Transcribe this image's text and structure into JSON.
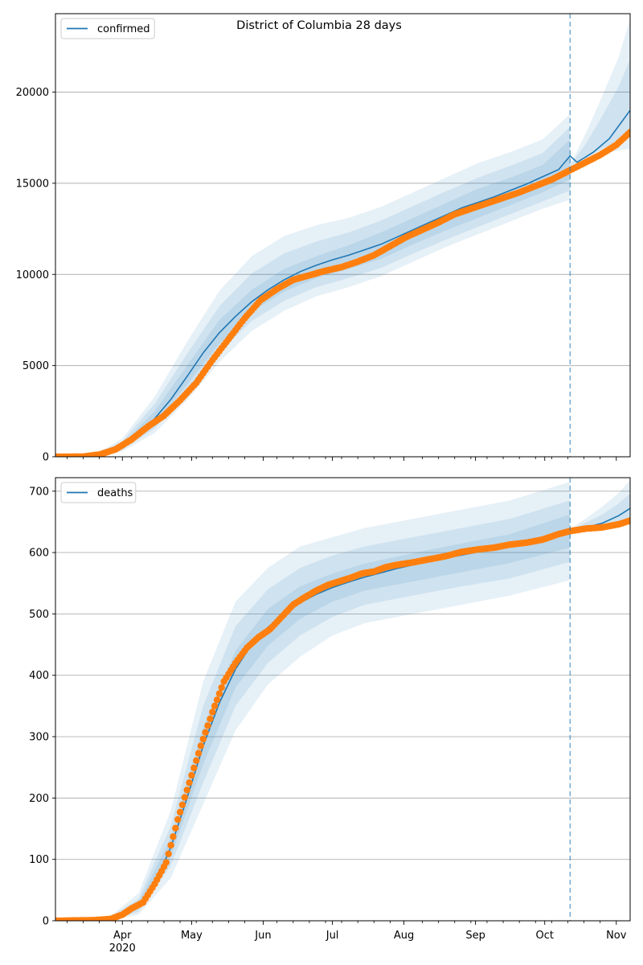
{
  "figure": {
    "title": "District of Columbia 28 days",
    "x_month_labels": [
      "Apr",
      "May",
      "Jun",
      "Jul",
      "Aug",
      "Sep",
      "Oct",
      "Nov"
    ],
    "x_year_label": "2020"
  },
  "chart_data": [
    {
      "type": "line",
      "legend": "confirmed",
      "legend_position": "top-left",
      "grid": "horizontal",
      "ylim": [
        0,
        24300
      ],
      "yticks": [
        0,
        5000,
        10000,
        15000,
        20000
      ],
      "xlim": [
        "2020-03-03",
        "2020-11-07"
      ],
      "forecast_start": "2020-10-12",
      "colors": {
        "model": "#1f77b4",
        "observed": "#ff7f0e",
        "band": "#1f77b4"
      },
      "model_median": [
        [
          "2020-03-03",
          0
        ],
        [
          "2020-03-20",
          40
        ],
        [
          "2020-03-27",
          230
        ],
        [
          "2020-04-01",
          550
        ],
        [
          "2020-04-08",
          1200
        ],
        [
          "2020-04-15",
          2100
        ],
        [
          "2020-04-22",
          3150
        ],
        [
          "2020-04-29",
          4400
        ],
        [
          "2020-05-06",
          5700
        ],
        [
          "2020-05-13",
          6800
        ],
        [
          "2020-05-20",
          7700
        ],
        [
          "2020-05-27",
          8500
        ],
        [
          "2020-06-03",
          9150
        ],
        [
          "2020-06-10",
          9700
        ],
        [
          "2020-06-17",
          10150
        ],
        [
          "2020-06-24",
          10500
        ],
        [
          "2020-07-01",
          10800
        ],
        [
          "2020-07-08",
          11050
        ],
        [
          "2020-07-15",
          11350
        ],
        [
          "2020-07-22",
          11650
        ],
        [
          "2020-07-29",
          12050
        ],
        [
          "2020-08-05",
          12450
        ],
        [
          "2020-08-12",
          12850
        ],
        [
          "2020-08-19",
          13250
        ],
        [
          "2020-08-26",
          13650
        ],
        [
          "2020-09-02",
          13950
        ],
        [
          "2020-09-09",
          14250
        ],
        [
          "2020-09-16",
          14600
        ],
        [
          "2020-09-23",
          14950
        ],
        [
          "2020-09-30",
          15350
        ],
        [
          "2020-10-07",
          15750
        ],
        [
          "2020-10-12",
          16500
        ],
        [
          "2020-10-15",
          16150
        ],
        [
          "2020-10-22",
          16700
        ],
        [
          "2020-10-29",
          17450
        ],
        [
          "2020-11-07",
          19000
        ]
      ],
      "observed": [
        [
          "2020-03-03",
          0
        ],
        [
          "2020-03-15",
          10
        ],
        [
          "2020-03-22",
          120
        ],
        [
          "2020-03-29",
          400
        ],
        [
          "2020-04-05",
          950
        ],
        [
          "2020-04-12",
          1650
        ],
        [
          "2020-04-19",
          2250
        ],
        [
          "2020-04-26",
          3100
        ],
        [
          "2020-05-03",
          4050
        ],
        [
          "2020-05-10",
          5300
        ],
        [
          "2020-05-17",
          6450
        ],
        [
          "2020-05-24",
          7600
        ],
        [
          "2020-05-31",
          8600
        ],
        [
          "2020-06-07",
          9200
        ],
        [
          "2020-06-14",
          9700
        ],
        [
          "2020-06-21",
          9950
        ],
        [
          "2020-06-28",
          10200
        ],
        [
          "2020-07-05",
          10400
        ],
        [
          "2020-07-12",
          10700
        ],
        [
          "2020-07-19",
          11050
        ],
        [
          "2020-07-26",
          11550
        ],
        [
          "2020-08-02",
          12050
        ],
        [
          "2020-08-09",
          12450
        ],
        [
          "2020-08-16",
          12850
        ],
        [
          "2020-08-23",
          13300
        ],
        [
          "2020-08-30",
          13600
        ],
        [
          "2020-09-06",
          13900
        ],
        [
          "2020-09-13",
          14200
        ],
        [
          "2020-09-20",
          14500
        ],
        [
          "2020-09-27",
          14850
        ],
        [
          "2020-10-04",
          15200
        ],
        [
          "2020-10-11",
          15650
        ],
        [
          "2020-10-18",
          16100
        ],
        [
          "2020-10-25",
          16550
        ],
        [
          "2020-11-01",
          17100
        ],
        [
          "2020-11-07",
          17800
        ]
      ],
      "bands": [
        {
          "dates": [
            "2020-03-03",
            "2020-03-20",
            "2020-04-01",
            "2020-04-15",
            "2020-04-29",
            "2020-05-13",
            "2020-05-27",
            "2020-06-10",
            "2020-06-24",
            "2020-07-08",
            "2020-07-22",
            "2020-08-05",
            "2020-08-19",
            "2020-09-02",
            "2020-09-16",
            "2020-09-30",
            "2020-10-12"
          ],
          "low": [
            0,
            10,
            300,
            1300,
            3100,
            5200,
            6900,
            8000,
            8800,
            9300,
            9900,
            10700,
            11500,
            12200,
            12900,
            13600,
            14100
          ],
          "high": [
            0,
            120,
            1000,
            3300,
            6300,
            9100,
            11000,
            12100,
            12700,
            13100,
            13700,
            14500,
            15300,
            16100,
            16700,
            17400,
            18800
          ]
        },
        {
          "dates": [
            "2020-03-03",
            "2020-03-20",
            "2020-04-01",
            "2020-04-15",
            "2020-04-29",
            "2020-05-13",
            "2020-05-27",
            "2020-06-10",
            "2020-06-24",
            "2020-07-08",
            "2020-07-22",
            "2020-08-05",
            "2020-08-19",
            "2020-09-02",
            "2020-09-16",
            "2020-09-30",
            "2020-10-12"
          ],
          "low": [
            0,
            20,
            380,
            1550,
            3550,
            5750,
            7450,
            8550,
            9300,
            9800,
            10350,
            11150,
            11900,
            12600,
            13300,
            14000,
            14600
          ],
          "high": [
            0,
            90,
            850,
            2900,
            5650,
            8250,
            10050,
            11150,
            11800,
            12300,
            12950,
            13750,
            14550,
            15300,
            15950,
            16650,
            18100
          ]
        },
        {
          "dates": [
            "2020-03-03",
            "2020-03-20",
            "2020-04-01",
            "2020-04-15",
            "2020-04-29",
            "2020-05-13",
            "2020-05-27",
            "2020-06-10",
            "2020-06-24",
            "2020-07-08",
            "2020-07-22",
            "2020-08-05",
            "2020-08-19",
            "2020-09-02",
            "2020-09-16",
            "2020-09-30",
            "2020-10-12"
          ],
          "low": [
            0,
            28,
            460,
            1800,
            3950,
            6200,
            7950,
            9050,
            9800,
            10300,
            10850,
            11650,
            12400,
            13100,
            13800,
            14500,
            15200
          ],
          "high": [
            0,
            65,
            700,
            2500,
            5000,
            7500,
            9150,
            10300,
            11000,
            11600,
            12300,
            13100,
            13900,
            14700,
            15300,
            16000,
            17400
          ]
        },
        {
          "dates": [
            "2020-10-12",
            "2020-10-19",
            "2020-10-26",
            "2020-11-02",
            "2020-11-07"
          ],
          "low": [
            15900,
            16200,
            16600,
            16800,
            16900
          ],
          "high": [
            16000,
            17800,
            19800,
            21900,
            24000
          ]
        },
        {
          "dates": [
            "2020-10-12",
            "2020-10-19",
            "2020-10-26",
            "2020-11-02",
            "2020-11-07"
          ],
          "low": [
            15950,
            16400,
            16900,
            17300,
            17500
          ],
          "high": [
            16000,
            17200,
            18700,
            20300,
            21800
          ]
        }
      ]
    },
    {
      "type": "line",
      "legend": "deaths",
      "legend_position": "top-left",
      "grid": "horizontal",
      "ylim": [
        0,
        722
      ],
      "yticks": [
        0,
        100,
        200,
        300,
        400,
        500,
        600,
        700
      ],
      "xlim": [
        "2020-03-03",
        "2020-11-07"
      ],
      "forecast_start": "2020-10-12",
      "colors": {
        "model": "#1f77b4",
        "observed": "#ff7f0e",
        "band": "#1f77b4"
      },
      "model_median": [
        [
          "2020-03-03",
          0
        ],
        [
          "2020-03-20",
          1
        ],
        [
          "2020-03-27",
          4
        ],
        [
          "2020-04-01",
          10
        ],
        [
          "2020-04-08",
          25
        ],
        [
          "2020-04-15",
          60
        ],
        [
          "2020-04-22",
          120
        ],
        [
          "2020-04-29",
          200
        ],
        [
          "2020-05-06",
          285
        ],
        [
          "2020-05-13",
          355
        ],
        [
          "2020-05-20",
          410
        ],
        [
          "2020-05-27",
          450
        ],
        [
          "2020-06-03",
          478
        ],
        [
          "2020-06-10",
          500
        ],
        [
          "2020-06-17",
          518
        ],
        [
          "2020-06-24",
          532
        ],
        [
          "2020-07-01",
          543
        ],
        [
          "2020-07-08",
          552
        ],
        [
          "2020-07-15",
          560
        ],
        [
          "2020-07-22",
          567
        ],
        [
          "2020-07-29",
          574
        ],
        [
          "2020-08-05",
          580
        ],
        [
          "2020-08-12",
          586
        ],
        [
          "2020-08-19",
          591
        ],
        [
          "2020-08-26",
          596
        ],
        [
          "2020-09-02",
          601
        ],
        [
          "2020-09-09",
          606
        ],
        [
          "2020-09-16",
          611
        ],
        [
          "2020-09-23",
          616
        ],
        [
          "2020-09-30",
          622
        ],
        [
          "2020-10-07",
          630
        ],
        [
          "2020-10-12",
          636
        ],
        [
          "2020-10-19",
          641
        ],
        [
          "2020-10-26",
          648
        ],
        [
          "2020-11-02",
          660
        ],
        [
          "2020-11-07",
          672
        ]
      ],
      "observed": [
        [
          "2020-03-03",
          0
        ],
        [
          "2020-03-20",
          1
        ],
        [
          "2020-03-27",
          3
        ],
        [
          "2020-04-01",
          10
        ],
        [
          "2020-04-05",
          20
        ],
        [
          "2020-04-10",
          30
        ],
        [
          "2020-04-15",
          60
        ],
        [
          "2020-04-20",
          95
        ],
        [
          "2020-04-25",
          165
        ],
        [
          "2020-04-30",
          225
        ],
        [
          "2020-05-05",
          285
        ],
        [
          "2020-05-10",
          340
        ],
        [
          "2020-05-15",
          390
        ],
        [
          "2020-05-20",
          420
        ],
        [
          "2020-05-25",
          445
        ],
        [
          "2020-05-30",
          462
        ],
        [
          "2020-06-04",
          475
        ],
        [
          "2020-06-09",
          495
        ],
        [
          "2020-06-14",
          515
        ],
        [
          "2020-06-19",
          527
        ],
        [
          "2020-06-24",
          538
        ],
        [
          "2020-06-29",
          547
        ],
        [
          "2020-07-04",
          553
        ],
        [
          "2020-07-09",
          559
        ],
        [
          "2020-07-14",
          566
        ],
        [
          "2020-07-19",
          569
        ],
        [
          "2020-07-24",
          576
        ],
        [
          "2020-07-29",
          580
        ],
        [
          "2020-08-05",
          584
        ],
        [
          "2020-08-12",
          589
        ],
        [
          "2020-08-19",
          594
        ],
        [
          "2020-08-26",
          601
        ],
        [
          "2020-09-02",
          605
        ],
        [
          "2020-09-09",
          608
        ],
        [
          "2020-09-16",
          613
        ],
        [
          "2020-09-23",
          616
        ],
        [
          "2020-09-30",
          621
        ],
        [
          "2020-10-07",
          630
        ],
        [
          "2020-10-12",
          635
        ],
        [
          "2020-10-19",
          639
        ],
        [
          "2020-10-26",
          641
        ],
        [
          "2020-11-02",
          646
        ],
        [
          "2020-11-07",
          652
        ]
      ],
      "bands": [
        {
          "dates": [
            "2020-03-03",
            "2020-03-27",
            "2020-04-08",
            "2020-04-22",
            "2020-05-06",
            "2020-05-20",
            "2020-06-03",
            "2020-06-17",
            "2020-07-01",
            "2020-07-15",
            "2020-08-05",
            "2020-08-26",
            "2020-09-16",
            "2020-10-12"
          ],
          "low": [
            0,
            1,
            10,
            70,
            190,
            310,
            385,
            430,
            465,
            485,
            500,
            515,
            530,
            555
          ],
          "high": [
            0,
            8,
            45,
            180,
            390,
            520,
            575,
            610,
            625,
            640,
            655,
            670,
            685,
            715
          ]
        },
        {
          "dates": [
            "2020-03-03",
            "2020-03-27",
            "2020-04-08",
            "2020-04-22",
            "2020-05-06",
            "2020-05-20",
            "2020-06-03",
            "2020-06-17",
            "2020-07-01",
            "2020-07-15",
            "2020-08-05",
            "2020-08-26",
            "2020-09-16",
            "2020-10-12"
          ],
          "low": [
            0,
            2,
            15,
            90,
            225,
            350,
            420,
            465,
            495,
            515,
            530,
            545,
            558,
            585
          ],
          "high": [
            0,
            6,
            36,
            155,
            350,
            480,
            540,
            575,
            595,
            610,
            625,
            640,
            655,
            685
          ]
        },
        {
          "dates": [
            "2020-03-03",
            "2020-03-27",
            "2020-04-08",
            "2020-04-22",
            "2020-05-06",
            "2020-05-20",
            "2020-06-03",
            "2020-06-17",
            "2020-07-01",
            "2020-07-15",
            "2020-08-05",
            "2020-08-26",
            "2020-09-16",
            "2020-10-12"
          ],
          "low": [
            0,
            3,
            19,
            105,
            255,
            380,
            448,
            492,
            520,
            538,
            553,
            568,
            583,
            608
          ],
          "high": [
            0,
            5,
            30,
            135,
            315,
            440,
            508,
            545,
            566,
            582,
            599,
            615,
            630,
            662
          ]
        },
        {
          "dates": [
            "2020-10-12",
            "2020-10-19",
            "2020-10-26",
            "2020-11-02",
            "2020-11-07"
          ],
          "low": [
            634,
            638,
            640,
            643,
            646
          ],
          "high": [
            638,
            656,
            675,
            697,
            718
          ]
        },
        {
          "dates": [
            "2020-10-12",
            "2020-10-19",
            "2020-10-26",
            "2020-11-02",
            "2020-11-07"
          ],
          "low": [
            635,
            639,
            643,
            648,
            652
          ],
          "high": [
            637,
            649,
            662,
            680,
            696
          ]
        }
      ]
    }
  ]
}
